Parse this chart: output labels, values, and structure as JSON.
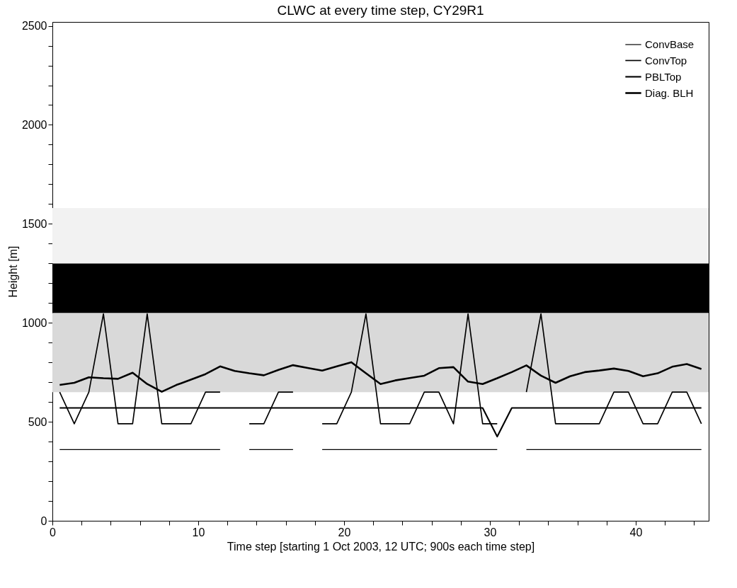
{
  "chart_data": {
    "type": "line",
    "title": "CLWC at every time step, CY29R1",
    "xlabel": "Time step [starting 1 Oct 2003, 12 UTC; 900s each time step]",
    "ylabel": "Height [m]",
    "x": [
      0.5,
      1.5,
      2.5,
      3.5,
      4.5,
      5.5,
      6.5,
      7.5,
      8.5,
      9.5,
      10.5,
      11.5,
      12.5,
      13.5,
      14.5,
      15.5,
      16.5,
      17.5,
      18.5,
      19.5,
      20.5,
      21.5,
      22.5,
      23.5,
      24.5,
      25.5,
      26.5,
      27.5,
      28.5,
      29.5,
      30.5,
      31.5,
      32.5,
      33.5,
      34.5,
      35.5,
      36.5,
      37.5,
      38.5,
      39.5,
      40.5,
      41.5,
      42.5,
      43.5,
      44.5
    ],
    "series": [
      {
        "name": "ConvBase",
        "color": "#000000",
        "values": [
          360,
          360,
          360,
          360,
          360,
          360,
          360,
          360,
          360,
          360,
          360,
          360,
          null,
          360,
          360,
          360,
          360,
          null,
          360,
          360,
          360,
          360,
          360,
          360,
          360,
          360,
          360,
          360,
          360,
          360,
          360,
          null,
          360,
          360,
          360,
          360,
          360,
          360,
          360,
          360,
          360,
          360,
          360,
          360,
          360
        ]
      },
      {
        "name": "ConvTop",
        "color": "#000000",
        "values": [
          650,
          490,
          650,
          1045,
          490,
          490,
          1045,
          490,
          490,
          490,
          650,
          650,
          null,
          490,
          490,
          650,
          650,
          null,
          490,
          490,
          650,
          1045,
          490,
          490,
          490,
          650,
          650,
          490,
          1045,
          490,
          490,
          null,
          650,
          1045,
          490,
          490,
          490,
          490,
          650,
          650,
          490,
          490,
          650,
          650,
          490
        ]
      },
      {
        "name": "PBLTop",
        "color": "#000000",
        "values": [
          570,
          570,
          570,
          570,
          570,
          570,
          570,
          570,
          570,
          570,
          570,
          570,
          570,
          570,
          570,
          570,
          570,
          570,
          570,
          570,
          570,
          570,
          570,
          570,
          570,
          570,
          570,
          570,
          570,
          570,
          425,
          570,
          570,
          570,
          570,
          570,
          570,
          570,
          570,
          570,
          570,
          570,
          570,
          570,
          570
        ]
      },
      {
        "name": "Diag. BLH",
        "color": "#000000",
        "values": [
          686,
          697,
          725,
          720,
          717,
          748,
          691,
          652,
          686,
          713,
          741,
          780,
          757,
          745,
          735,
          762,
          786,
          772,
          759,
          780,
          801,
          745,
          691,
          709,
          721,
          733,
          771,
          776,
          703,
          691,
          720,
          751,
          785,
          733,
          697,
          730,
          751,
          759,
          769,
          757,
          730,
          745,
          778,
          792,
          767
        ]
      }
    ],
    "bands": [
      {
        "axis": "y",
        "from": 650,
        "to": 1050,
        "color": "#d9d9d9"
      },
      {
        "axis": "y",
        "from": 1050,
        "to": 1300,
        "color": "#000000"
      },
      {
        "axis": "y",
        "from": 1300,
        "to": 1580,
        "color": "#f2f2f2"
      }
    ],
    "xlim": [
      0,
      45
    ],
    "ylim": [
      0,
      2520
    ],
    "xticks": [
      0,
      {
        "value": 2,
        "label": null
      },
      {
        "value": 4,
        "label": null
      },
      {
        "value": 6,
        "label": null
      },
      {
        "value": 8,
        "label": null
      },
      10,
      {
        "value": 12,
        "label": null
      },
      {
        "value": 14,
        "label": null
      },
      {
        "value": 16,
        "label": null
      },
      {
        "value": 18,
        "label": null
      },
      20,
      {
        "value": 22,
        "label": null
      },
      {
        "value": 24,
        "label": null
      },
      {
        "value": 26,
        "label": null
      },
      {
        "value": 28,
        "label": null
      },
      30,
      {
        "value": 32,
        "label": null
      },
      {
        "value": 34,
        "label": null
      },
      {
        "value": 36,
        "label": null
      },
      {
        "value": 38,
        "label": null
      },
      40,
      {
        "value": 42,
        "label": null
      },
      {
        "value": 44,
        "label": null
      }
    ],
    "yticks": [
      0,
      {
        "value": 100,
        "label": null
      },
      {
        "value": 200,
        "label": null
      },
      {
        "value": 300,
        "label": null
      },
      {
        "value": 400,
        "label": null
      },
      500,
      {
        "value": 600,
        "label": null
      },
      {
        "value": 700,
        "label": null
      },
      {
        "value": 800,
        "label": null
      },
      {
        "value": 900,
        "label": null
      },
      1000,
      {
        "value": 1100,
        "label": null
      },
      {
        "value": 1200,
        "label": null
      },
      {
        "value": 1300,
        "label": null
      },
      {
        "value": 1400,
        "label": null
      },
      1500,
      {
        "value": 1600,
        "label": null
      },
      {
        "value": 1700,
        "label": null
      },
      {
        "value": 1800,
        "label": null
      },
      {
        "value": 1900,
        "label": null
      },
      2000,
      {
        "value": 2100,
        "label": null
      },
      {
        "value": 2200,
        "label": null
      },
      {
        "value": 2300,
        "label": null
      },
      {
        "value": 2400,
        "label": null
      },
      2500
    ],
    "legend": "top right",
    "grid": false,
    "line_style": "solid",
    "marker": "none"
  }
}
